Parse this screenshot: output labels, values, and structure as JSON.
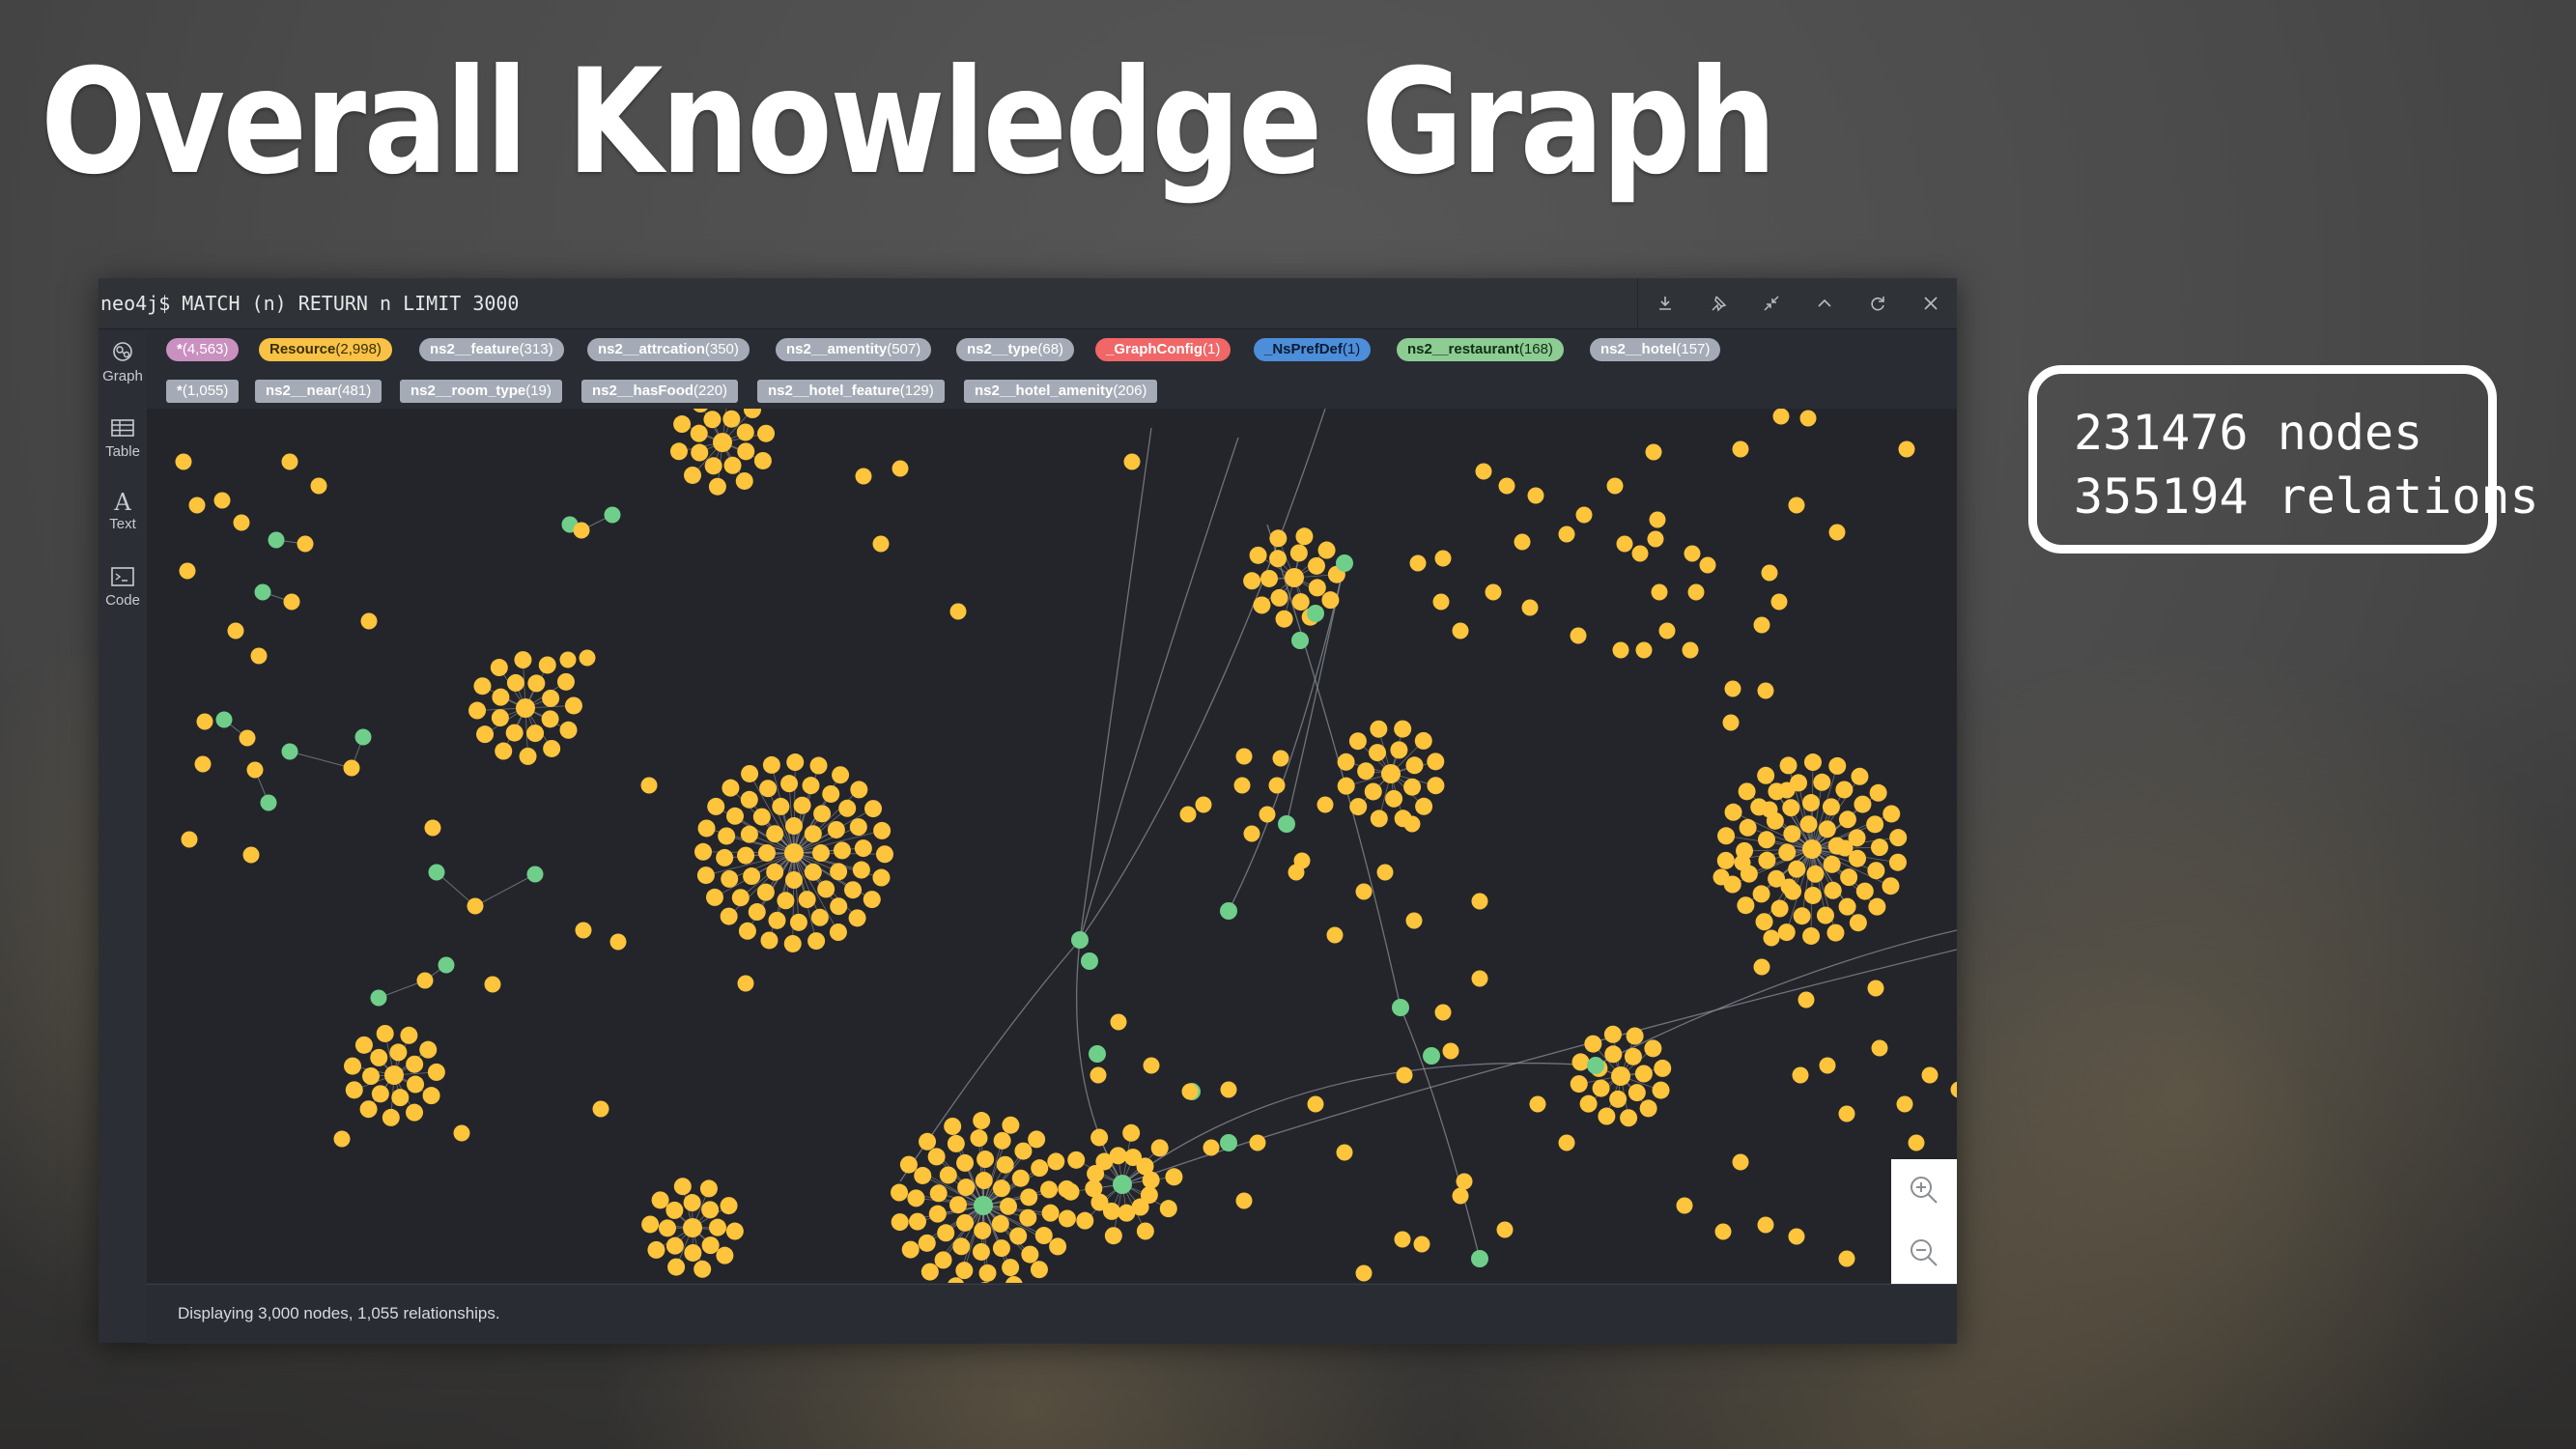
{
  "slide": {
    "title": "Overall Knowledge Graph",
    "stats": {
      "nodes": "231476 nodes",
      "relations": "355194 relations"
    }
  },
  "window": {
    "query": "neo4j$ MATCH (n) RETURN n LIMIT 3000",
    "toolbar": [
      "download-icon",
      "pin-icon",
      "collapse-icon",
      "chevron-up-icon",
      "refresh-icon",
      "close-icon"
    ]
  },
  "sidebar": {
    "items": [
      {
        "label": "Graph",
        "icon": "graph-icon"
      },
      {
        "label": "Table",
        "icon": "table-icon"
      },
      {
        "label": "Text",
        "icon": "text-icon"
      },
      {
        "label": "Code",
        "icon": "code-icon"
      }
    ]
  },
  "legend": {
    "labels": [
      {
        "name": "*",
        "count": "(4,563)",
        "color": "#c990c0"
      },
      {
        "name": "Resource",
        "count": "(2,998)",
        "color": "#f9c247"
      },
      {
        "name": "ns2__feature",
        "count": "(313)",
        "color": "#a5abb6"
      },
      {
        "name": "ns2__attrcation",
        "count": "(350)",
        "color": "#a5abb6"
      },
      {
        "name": "ns2__amentity",
        "count": "(507)",
        "color": "#a5abb6"
      },
      {
        "name": "ns2__type",
        "count": "(68)",
        "color": "#a5abb6"
      },
      {
        "name": "_GraphConfig",
        "count": "(1)",
        "color": "#f16667"
      },
      {
        "name": "_NsPrefDef",
        "count": "(1)",
        "color": "#4c8eda"
      },
      {
        "name": "ns2__restaurant",
        "count": "(168)",
        "color": "#8dcc93"
      },
      {
        "name": "ns2__hotel",
        "count": "(157)",
        "color": "#a5abb6"
      }
    ],
    "relationships": [
      {
        "name": "*",
        "count": "(1,055)"
      },
      {
        "name": "ns2__near",
        "count": "(481)"
      },
      {
        "name": "ns2__room_type",
        "count": "(19)"
      },
      {
        "name": "ns2__hasFood",
        "count": "(220)"
      },
      {
        "name": "ns2__hotel_feature",
        "count": "(129)"
      },
      {
        "name": "ns2__hotel_amenity",
        "count": "(206)"
      }
    ]
  },
  "status": "Displaying 3,000 nodes, 1,055 relationships.",
  "zoom": {
    "in_icon": "zoom-in-icon",
    "out_icon": "zoom-out-icon"
  },
  "colors": {
    "node_main": "#fdc43c",
    "node_secondary": "#6fcf8a",
    "edge": "#8a8e96",
    "canvas": "#23252b"
  }
}
